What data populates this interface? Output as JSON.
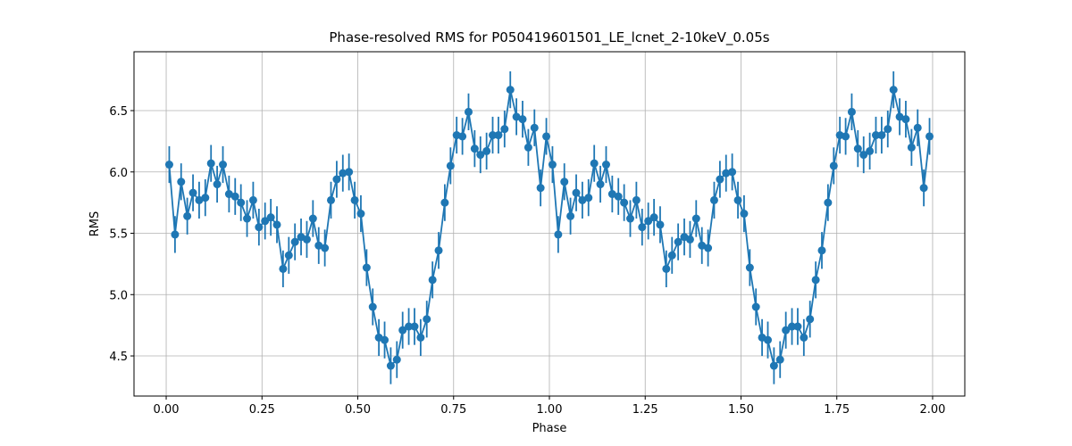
{
  "chart_data": {
    "type": "errorbar",
    "title": "Phase-resolved RMS for P050419601501_LE_lcnet_2-10keV_0.05s",
    "xlabel": "Phase",
    "ylabel": "RMS",
    "xlim": [
      -0.084,
      2.084
    ],
    "ylim": [
      4.173,
      6.98
    ],
    "xticks": [
      {
        "value": 0,
        "label": "0.00"
      },
      {
        "value": 0.25,
        "label": "0.25"
      },
      {
        "value": 0.5,
        "label": "0.50"
      },
      {
        "value": 0.75,
        "label": "0.75"
      },
      {
        "value": 1,
        "label": "1.00"
      },
      {
        "value": 1.25,
        "label": "1.25"
      },
      {
        "value": 1.5,
        "label": "1.50"
      },
      {
        "value": 1.75,
        "label": "1.75"
      },
      {
        "value": 2,
        "label": "2.00"
      }
    ],
    "yticks": [
      {
        "value": 4.5,
        "label": "4.5"
      },
      {
        "value": 5,
        "label": "5.0"
      },
      {
        "value": 5.5,
        "label": "5.5"
      },
      {
        "value": 6,
        "label": "6.0"
      },
      {
        "value": 6.5,
        "label": "6.5"
      }
    ],
    "grid": true,
    "color": "#1f77b4",
    "x": [
      0.008,
      0.023,
      0.039,
      0.055,
      0.07,
      0.086,
      0.102,
      0.117,
      0.133,
      0.148,
      0.164,
      0.18,
      0.195,
      0.211,
      0.227,
      0.242,
      0.258,
      0.273,
      0.289,
      0.305,
      0.32,
      0.336,
      0.352,
      0.367,
      0.383,
      0.398,
      0.414,
      0.43,
      0.445,
      0.461,
      0.477,
      0.492,
      0.508,
      0.523,
      0.539,
      0.555,
      0.57,
      0.586,
      0.602,
      0.617,
      0.633,
      0.648,
      0.664,
      0.68,
      0.695,
      0.711,
      0.727,
      0.742,
      0.758,
      0.773,
      0.789,
      0.805,
      0.82,
      0.836,
      0.852,
      0.867,
      0.883,
      0.898,
      0.914,
      0.93,
      0.945,
      0.961,
      0.977,
      0.992,
      1.008,
      1.023,
      1.039,
      1.055,
      1.07,
      1.086,
      1.102,
      1.117,
      1.133,
      1.148,
      1.164,
      1.18,
      1.195,
      1.211,
      1.227,
      1.242,
      1.258,
      1.273,
      1.289,
      1.305,
      1.32,
      1.336,
      1.352,
      1.367,
      1.383,
      1.398,
      1.414,
      1.43,
      1.445,
      1.461,
      1.477,
      1.492,
      1.508,
      1.523,
      1.539,
      1.555,
      1.57,
      1.586,
      1.602,
      1.617,
      1.633,
      1.648,
      1.664,
      1.68,
      1.695,
      1.711,
      1.727,
      1.742,
      1.758,
      1.773,
      1.789,
      1.805,
      1.82,
      1.836,
      1.852,
      1.867,
      1.883,
      1.898,
      1.914,
      1.93,
      1.945,
      1.961,
      1.977,
      1.992
    ],
    "values": [
      6.06,
      5.49,
      5.92,
      5.64,
      5.83,
      5.77,
      5.79,
      6.07,
      5.9,
      6.06,
      5.82,
      5.8,
      5.75,
      5.62,
      5.77,
      5.55,
      5.6,
      5.63,
      5.57,
      5.21,
      5.32,
      5.43,
      5.47,
      5.45,
      5.62,
      5.4,
      5.38,
      5.77,
      5.94,
      5.99,
      6.0,
      5.77,
      5.66,
      5.22,
      4.9,
      4.65,
      4.63,
      4.42,
      4.47,
      4.71,
      4.74,
      4.74,
      4.65,
      4.8,
      5.12,
      5.36,
      5.75,
      6.05,
      6.3,
      6.29,
      6.49,
      6.19,
      6.14,
      6.17,
      6.3,
      6.3,
      6.35,
      6.67,
      6.45,
      6.43,
      6.2,
      6.36,
      5.87,
      6.29,
      6.06,
      5.49,
      5.92,
      5.64,
      5.83,
      5.77,
      5.79,
      6.07,
      5.9,
      6.06,
      5.82,
      5.8,
      5.75,
      5.62,
      5.77,
      5.55,
      5.6,
      5.63,
      5.57,
      5.21,
      5.32,
      5.43,
      5.47,
      5.45,
      5.62,
      5.4,
      5.38,
      5.77,
      5.94,
      5.99,
      6.0,
      5.77,
      5.66,
      5.22,
      4.9,
      4.65,
      4.63,
      4.42,
      4.47,
      4.71,
      4.74,
      4.74,
      4.65,
      4.8,
      5.12,
      5.36,
      5.75,
      6.05,
      6.3,
      6.29,
      6.49,
      6.19,
      6.14,
      6.17,
      6.3,
      6.3,
      6.35,
      6.67,
      6.45,
      6.43,
      6.2,
      6.36,
      5.87,
      6.29
    ],
    "errors": [
      0.15,
      0.15,
      0.15,
      0.15,
      0.15,
      0.15,
      0.15,
      0.15,
      0.15,
      0.15,
      0.15,
      0.15,
      0.15,
      0.15,
      0.15,
      0.15,
      0.15,
      0.15,
      0.15,
      0.15,
      0.15,
      0.15,
      0.15,
      0.15,
      0.15,
      0.15,
      0.15,
      0.15,
      0.15,
      0.15,
      0.15,
      0.15,
      0.15,
      0.15,
      0.15,
      0.15,
      0.15,
      0.15,
      0.15,
      0.15,
      0.15,
      0.15,
      0.15,
      0.15,
      0.15,
      0.15,
      0.15,
      0.15,
      0.15,
      0.15,
      0.15,
      0.15,
      0.15,
      0.15,
      0.15,
      0.15,
      0.15,
      0.15,
      0.15,
      0.15,
      0.15,
      0.15,
      0.15,
      0.15,
      0.15,
      0.15,
      0.15,
      0.15,
      0.15,
      0.15,
      0.15,
      0.15,
      0.15,
      0.15,
      0.15,
      0.15,
      0.15,
      0.15,
      0.15,
      0.15,
      0.15,
      0.15,
      0.15,
      0.15,
      0.15,
      0.15,
      0.15,
      0.15,
      0.15,
      0.15,
      0.15,
      0.15,
      0.15,
      0.15,
      0.15,
      0.15,
      0.15,
      0.15,
      0.15,
      0.15,
      0.15,
      0.15,
      0.15,
      0.15,
      0.15,
      0.15,
      0.15,
      0.15,
      0.15,
      0.15,
      0.15,
      0.15,
      0.15,
      0.15,
      0.15,
      0.15,
      0.15,
      0.15,
      0.15,
      0.15,
      0.15,
      0.15,
      0.15,
      0.15,
      0.15,
      0.15,
      0.15,
      0.15
    ]
  }
}
